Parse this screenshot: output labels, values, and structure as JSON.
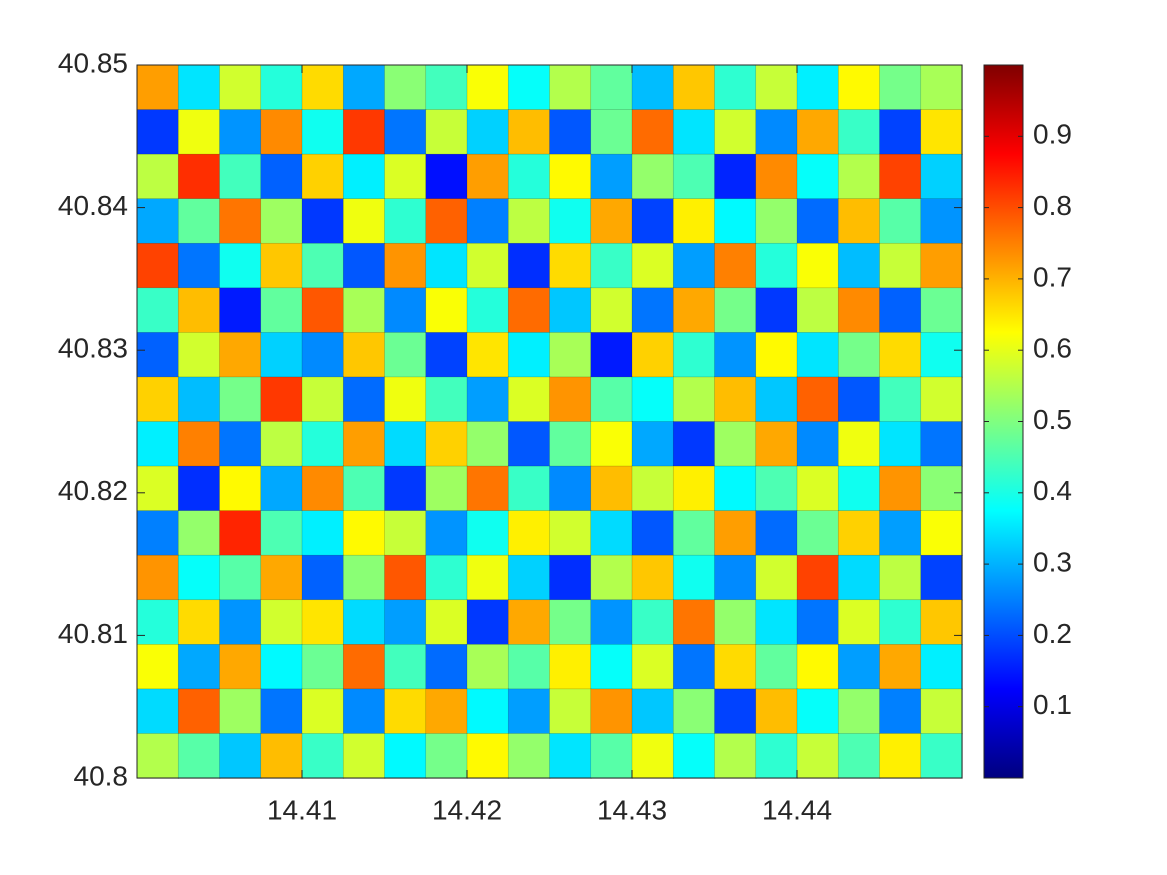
{
  "chart_data": {
    "type": "heatmap",
    "colormap": "jet",
    "xlim": [
      14.4,
      14.45
    ],
    "xticks": [
      14.41,
      14.42,
      14.43,
      14.44
    ],
    "ylim": [
      40.8,
      40.85
    ],
    "yticks": [
      40.8,
      40.81,
      40.82,
      40.83,
      40.84,
      40.85
    ],
    "clim": [
      0,
      1
    ],
    "cticks": [
      0.1,
      0.2,
      0.3,
      0.4,
      0.5,
      0.6,
      0.7,
      0.8,
      0.9
    ],
    "z": [
      [
        0.72,
        0.35,
        0.58,
        0.41,
        0.66,
        0.29,
        0.51,
        0.44,
        0.62,
        0.38,
        0.55,
        0.47,
        0.31,
        0.68,
        0.42,
        0.57,
        0.36,
        0.63,
        0.49,
        0.54
      ],
      [
        0.18,
        0.61,
        0.27,
        0.74,
        0.39,
        0.82,
        0.24,
        0.57,
        0.33,
        0.69,
        0.21,
        0.48,
        0.77,
        0.35,
        0.58,
        0.26,
        0.71,
        0.43,
        0.19,
        0.65
      ],
      [
        0.56,
        0.83,
        0.44,
        0.22,
        0.67,
        0.36,
        0.59,
        0.14,
        0.72,
        0.41,
        0.63,
        0.28,
        0.52,
        0.45,
        0.16,
        0.74,
        0.38,
        0.55,
        0.81,
        0.33
      ],
      [
        0.29,
        0.47,
        0.76,
        0.53,
        0.18,
        0.61,
        0.42,
        0.78,
        0.25,
        0.56,
        0.39,
        0.71,
        0.19,
        0.64,
        0.37,
        0.52,
        0.23,
        0.69,
        0.46,
        0.27
      ],
      [
        0.81,
        0.24,
        0.39,
        0.68,
        0.45,
        0.21,
        0.73,
        0.35,
        0.58,
        0.17,
        0.66,
        0.43,
        0.59,
        0.28,
        0.75,
        0.41,
        0.62,
        0.31,
        0.57,
        0.72
      ],
      [
        0.43,
        0.69,
        0.15,
        0.47,
        0.79,
        0.54,
        0.26,
        0.62,
        0.41,
        0.77,
        0.32,
        0.58,
        0.24,
        0.71,
        0.49,
        0.18,
        0.56,
        0.74,
        0.22,
        0.48
      ],
      [
        0.22,
        0.58,
        0.71,
        0.33,
        0.26,
        0.68,
        0.48,
        0.19,
        0.65,
        0.36,
        0.54,
        0.15,
        0.67,
        0.42,
        0.27,
        0.63,
        0.35,
        0.49,
        0.66,
        0.39
      ],
      [
        0.67,
        0.31,
        0.49,
        0.82,
        0.57,
        0.23,
        0.61,
        0.44,
        0.28,
        0.59,
        0.73,
        0.46,
        0.38,
        0.55,
        0.69,
        0.32,
        0.78,
        0.21,
        0.44,
        0.58
      ],
      [
        0.36,
        0.75,
        0.24,
        0.56,
        0.41,
        0.72,
        0.34,
        0.67,
        0.52,
        0.21,
        0.47,
        0.62,
        0.29,
        0.18,
        0.53,
        0.71,
        0.26,
        0.61,
        0.35,
        0.24
      ],
      [
        0.59,
        0.17,
        0.63,
        0.29,
        0.74,
        0.45,
        0.18,
        0.53,
        0.76,
        0.43,
        0.26,
        0.69,
        0.57,
        0.64,
        0.37,
        0.45,
        0.59,
        0.39,
        0.73,
        0.51
      ],
      [
        0.25,
        0.52,
        0.84,
        0.45,
        0.36,
        0.63,
        0.57,
        0.27,
        0.39,
        0.64,
        0.58,
        0.34,
        0.21,
        0.47,
        0.72,
        0.23,
        0.48,
        0.67,
        0.28,
        0.62
      ],
      [
        0.73,
        0.38,
        0.46,
        0.71,
        0.22,
        0.51,
        0.79,
        0.42,
        0.61,
        0.33,
        0.17,
        0.55,
        0.68,
        0.39,
        0.26,
        0.58,
        0.81,
        0.34,
        0.56,
        0.19
      ],
      [
        0.41,
        0.66,
        0.27,
        0.58,
        0.65,
        0.34,
        0.28,
        0.59,
        0.18,
        0.71,
        0.49,
        0.27,
        0.43,
        0.76,
        0.52,
        0.35,
        0.24,
        0.59,
        0.42,
        0.68
      ],
      [
        0.62,
        0.29,
        0.71,
        0.37,
        0.48,
        0.77,
        0.44,
        0.23,
        0.54,
        0.46,
        0.64,
        0.38,
        0.59,
        0.24,
        0.66,
        0.47,
        0.63,
        0.28,
        0.71,
        0.36
      ],
      [
        0.34,
        0.78,
        0.53,
        0.24,
        0.59,
        0.26,
        0.66,
        0.71,
        0.37,
        0.28,
        0.57,
        0.73,
        0.32,
        0.51,
        0.19,
        0.69,
        0.38,
        0.52,
        0.25,
        0.57
      ],
      [
        0.55,
        0.46,
        0.32,
        0.69,
        0.43,
        0.58,
        0.37,
        0.49,
        0.63,
        0.52,
        0.35,
        0.46,
        0.61,
        0.38,
        0.55,
        0.42,
        0.57,
        0.45,
        0.64,
        0.43
      ]
    ]
  }
}
